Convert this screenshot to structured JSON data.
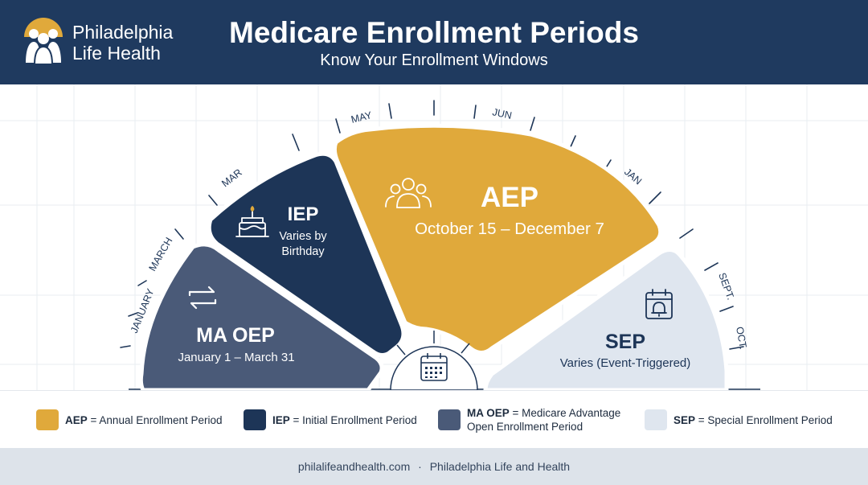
{
  "header": {
    "brand_line1": "Philadelphia",
    "brand_line2": "Life Health",
    "title": "Medicare Enrollment Periods",
    "subtitle": "Know Your Enrollment Windows"
  },
  "colors": {
    "navy": "#1f3a5f",
    "dark_navy": "#1d3557",
    "slate": "#4a5a78",
    "gold": "#e0a93b",
    "light": "#dfe6ef"
  },
  "segments": {
    "ma_oep": {
      "title": "MA OEP",
      "detail": "January 1 – March 31",
      "icon": "swap-arrows-icon"
    },
    "iep": {
      "title": "IEP",
      "detail_line1": "Varies by",
      "detail_line2": "Birthday",
      "icon": "birthday-cake-icon"
    },
    "aep": {
      "title": "AEP",
      "detail": "October 15 – December 7",
      "icon": "group-people-icon"
    },
    "sep": {
      "title": "SEP",
      "detail": "Varies (Event-Triggered)",
      "icon": "calendar-bell-icon"
    },
    "center_icon": "calendar-grid-icon"
  },
  "month_labels": {
    "january": "JANUARY",
    "march": "MARCH",
    "mar": "MAR",
    "may": "MAY",
    "jun": "JUN",
    "jan": "JAN",
    "sept": "SEPT.",
    "oct": "OCT."
  },
  "legend": {
    "aep": {
      "abbr": "AEP",
      "text": "= Annual Enrollment Period"
    },
    "iep": {
      "abbr": "IEP",
      "text": "= Initial Enrollment Period"
    },
    "ma_oep": {
      "abbr": "MA OEP",
      "text": "= Medicare Advantage",
      "text2": "Open Enrollment Period"
    },
    "sep": {
      "abbr": "SEP",
      "text": "= Special Enrollment Period"
    }
  },
  "footer": {
    "site": "philalifeandhealth.com",
    "separator": "·",
    "name": "Philadelphia Life and Health"
  }
}
